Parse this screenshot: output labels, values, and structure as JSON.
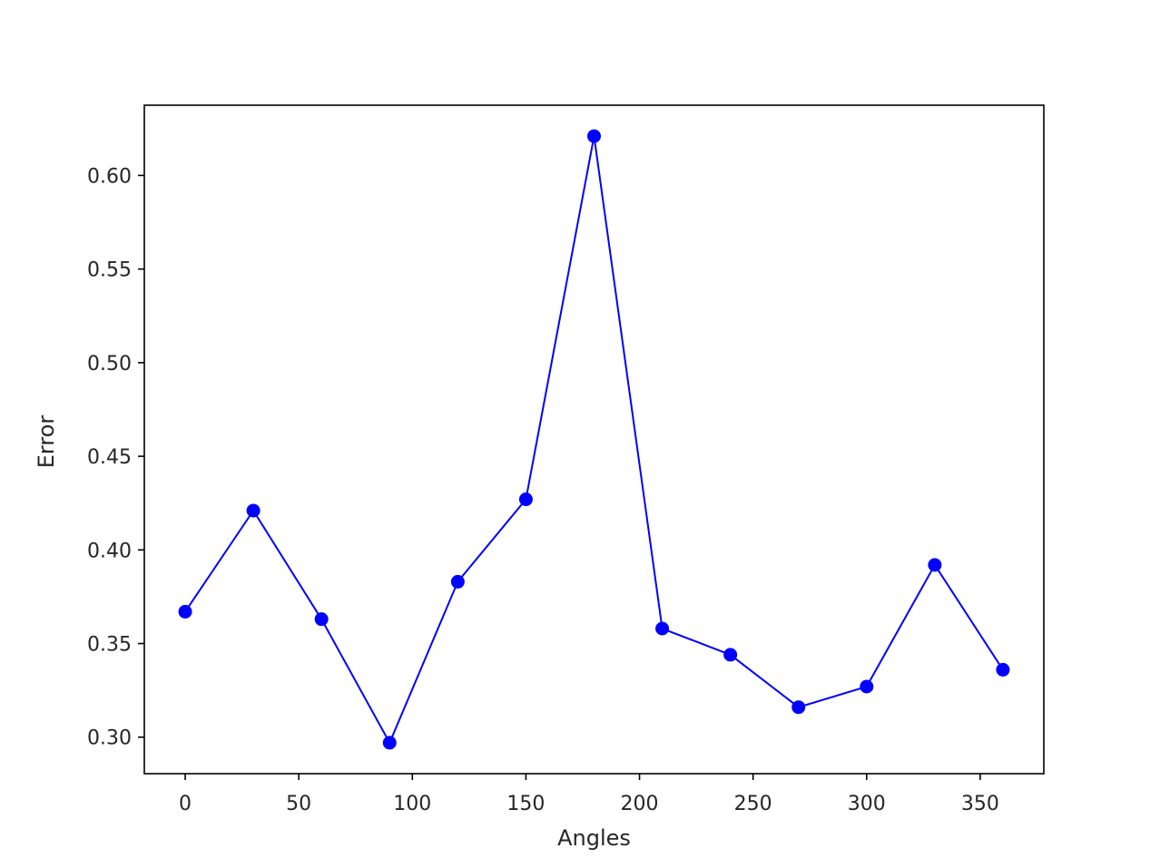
{
  "chart_data": {
    "type": "line",
    "title": "",
    "xlabel": "Angles",
    "ylabel": "Error",
    "x": [
      0,
      30,
      60,
      90,
      120,
      150,
      180,
      210,
      240,
      270,
      300,
      330,
      360
    ],
    "series": [
      {
        "values": [
          0.367,
          0.421,
          0.363,
          0.297,
          0.383,
          0.427,
          0.621,
          0.358,
          0.344,
          0.316,
          0.327,
          0.392,
          0.336
        ],
        "color": "#0000ff",
        "marker": "circle"
      }
    ],
    "xlim": [
      -18,
      378
    ],
    "ylim": [
      0.2805,
      0.6375
    ],
    "xticks": [
      0,
      50,
      100,
      150,
      200,
      250,
      300,
      350
    ],
    "xtick_labels": [
      "0",
      "50",
      "100",
      "150",
      "200",
      "250",
      "300",
      "350"
    ],
    "yticks": [
      0.3,
      0.35,
      0.4,
      0.45,
      0.5,
      0.55,
      0.6
    ],
    "ytick_labels": [
      "0.30",
      "0.35",
      "0.40",
      "0.45",
      "0.50",
      "0.55",
      "0.60"
    ],
    "grid": false,
    "legend": "none"
  }
}
